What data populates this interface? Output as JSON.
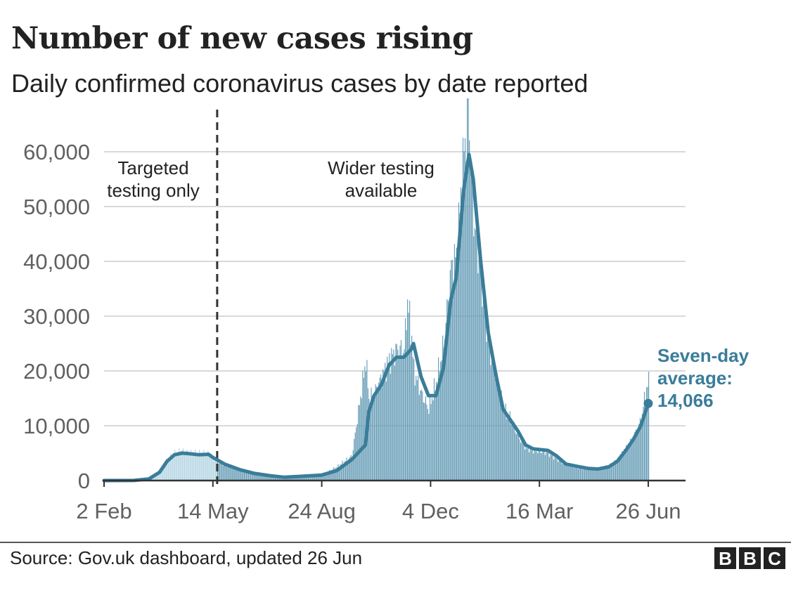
{
  "title": "Number of new cases rising",
  "subtitle": "Daily confirmed coronavirus cases by date reported",
  "source": "Source: Gov.uk dashboard, updated 26 Jun",
  "logo": [
    "B",
    "B",
    "C"
  ],
  "chart_data": {
    "type": "area",
    "title": "Number of new cases rising",
    "subtitle": "Daily confirmed coronavirus cases by date reported",
    "xlabel": "",
    "ylabel": "",
    "x_range": [
      "2020-02-02",
      "2021-06-26"
    ],
    "ylim": [
      0,
      60000
    ],
    "y_ticks": [
      0,
      10000,
      20000,
      30000,
      40000,
      50000,
      60000
    ],
    "y_tick_labels": [
      "0",
      "10,000",
      "20,000",
      "30,000",
      "40,000",
      "50,000",
      "60,000"
    ],
    "x_ticks": [
      "2020-02-02",
      "2020-05-14",
      "2020-08-24",
      "2020-12-04",
      "2021-03-16",
      "2021-06-26"
    ],
    "x_tick_labels": [
      "2 Feb",
      "14 May",
      "24 Aug",
      "4 Dec",
      "16 Mar",
      "26 Jun"
    ],
    "grid": true,
    "colors": {
      "line": "#3a7d99",
      "bars_targeted": "#b5d6e3",
      "bars_wider": "#6a9fb8",
      "grid": "#d9d9d9",
      "divider": "#333333"
    },
    "divider_date": "2020-05-18",
    "annotations": [
      {
        "lines": [
          "Targeted",
          "testing only"
        ]
      },
      {
        "lines": [
          "Wider testing",
          "available"
        ]
      }
    ],
    "callout": {
      "lines": [
        "Seven-day",
        "average:",
        "14,066"
      ],
      "date": "2021-06-26",
      "value": 14066
    },
    "series": [
      {
        "type": "line",
        "points": [
          [
            "2020-02-02",
            0
          ],
          [
            "2020-03-01",
            10
          ],
          [
            "2020-03-15",
            300
          ],
          [
            "2020-03-25",
            1500
          ],
          [
            "2020-04-01",
            3500
          ],
          [
            "2020-04-08",
            4700
          ],
          [
            "2020-04-15",
            5000
          ],
          [
            "2020-04-22",
            4900
          ],
          [
            "2020-05-01",
            4700
          ],
          [
            "2020-05-10",
            4800
          ],
          [
            "2020-05-14",
            4200
          ],
          [
            "2020-05-25",
            3000
          ],
          [
            "2020-06-08",
            2000
          ],
          [
            "2020-06-22",
            1300
          ],
          [
            "2020-07-06",
            900
          ],
          [
            "2020-07-20",
            600
          ],
          [
            "2020-08-03",
            750
          ],
          [
            "2020-08-24",
            1000
          ],
          [
            "2020-09-07",
            1800
          ],
          [
            "2020-09-21",
            3800
          ],
          [
            "2020-10-04",
            6500
          ],
          [
            "2020-10-07",
            12500
          ],
          [
            "2020-10-12",
            15500
          ],
          [
            "2020-10-19",
            17500
          ],
          [
            "2020-10-26",
            21000
          ],
          [
            "2020-11-02",
            22500
          ],
          [
            "2020-11-09",
            22500
          ],
          [
            "2020-11-16",
            24000
          ],
          [
            "2020-11-18",
            25000
          ],
          [
            "2020-11-25",
            19000
          ],
          [
            "2020-12-02",
            15500
          ],
          [
            "2020-12-09",
            15500
          ],
          [
            "2020-12-16",
            20500
          ],
          [
            "2020-12-23",
            33000
          ],
          [
            "2020-12-28",
            37000
          ],
          [
            "2021-01-04",
            53000
          ],
          [
            "2021-01-09",
            59500
          ],
          [
            "2021-01-13",
            55000
          ],
          [
            "2021-01-20",
            40000
          ],
          [
            "2021-01-27",
            27000
          ],
          [
            "2021-02-03",
            19500
          ],
          [
            "2021-02-10",
            13000
          ],
          [
            "2021-02-17",
            11000
          ],
          [
            "2021-02-24",
            9000
          ],
          [
            "2021-03-03",
            6500
          ],
          [
            "2021-03-10",
            5800
          ],
          [
            "2021-03-24",
            5500
          ],
          [
            "2021-04-01",
            4500
          ],
          [
            "2021-04-10",
            3000
          ],
          [
            "2021-04-20",
            2600
          ],
          [
            "2021-05-01",
            2200
          ],
          [
            "2021-05-10",
            2100
          ],
          [
            "2021-05-20",
            2500
          ],
          [
            "2021-05-28",
            3500
          ],
          [
            "2021-06-05",
            5500
          ],
          [
            "2021-06-12",
            7500
          ],
          [
            "2021-06-19",
            10000
          ],
          [
            "2021-06-26",
            14066
          ]
        ]
      }
    ],
    "daily_bars_approx": [
      [
        "2020-02-02",
        0
      ],
      [
        "2020-03-01",
        20
      ],
      [
        "2020-03-15",
        400
      ],
      [
        "2020-03-25",
        1800
      ],
      [
        "2020-04-01",
        4000
      ],
      [
        "2020-04-08",
        5000
      ],
      [
        "2020-04-15",
        5500
      ],
      [
        "2020-04-22",
        5200
      ],
      [
        "2020-05-01",
        5000
      ],
      [
        "2020-05-10",
        5000
      ],
      [
        "2020-05-14",
        4000
      ],
      [
        "2020-05-25",
        2900
      ],
      [
        "2020-06-08",
        1800
      ],
      [
        "2020-06-22",
        1200
      ],
      [
        "2020-07-06",
        800
      ],
      [
        "2020-07-20",
        600
      ],
      [
        "2020-08-03",
        800
      ],
      [
        "2020-08-24",
        1100
      ],
      [
        "2020-09-07",
        2500
      ],
      [
        "2020-09-21",
        4500
      ],
      [
        "2020-10-04",
        22000
      ],
      [
        "2020-10-07",
        15000
      ],
      [
        "2020-10-12",
        16000
      ],
      [
        "2020-10-19",
        19000
      ],
      [
        "2020-10-26",
        22000
      ],
      [
        "2020-11-02",
        24000
      ],
      [
        "2020-11-09",
        24000
      ],
      [
        "2020-11-12",
        33000
      ],
      [
        "2020-11-16",
        26000
      ],
      [
        "2020-11-18",
        20000
      ],
      [
        "2020-11-25",
        16000
      ],
      [
        "2020-12-02",
        13000
      ],
      [
        "2020-12-09",
        18000
      ],
      [
        "2020-12-16",
        25000
      ],
      [
        "2020-12-23",
        39000
      ],
      [
        "2020-12-28",
        41000
      ],
      [
        "2021-01-04",
        60000
      ],
      [
        "2021-01-08",
        68000
      ],
      [
        "2021-01-13",
        48000
      ],
      [
        "2021-01-20",
        38000
      ],
      [
        "2021-01-27",
        25000
      ],
      [
        "2021-02-03",
        19000
      ],
      [
        "2021-02-10",
        13000
      ],
      [
        "2021-02-17",
        11000
      ],
      [
        "2021-02-24",
        8000
      ],
      [
        "2021-03-03",
        6000
      ],
      [
        "2021-03-10",
        5500
      ],
      [
        "2021-03-24",
        5000
      ],
      [
        "2021-04-01",
        4000
      ],
      [
        "2021-04-10",
        2800
      ],
      [
        "2021-04-20",
        2400
      ],
      [
        "2021-05-01",
        2000
      ],
      [
        "2021-05-10",
        2000
      ],
      [
        "2021-05-20",
        2700
      ],
      [
        "2021-05-28",
        4000
      ],
      [
        "2021-06-05",
        6000
      ],
      [
        "2021-06-12",
        8000
      ],
      [
        "2021-06-19",
        11000
      ],
      [
        "2021-06-23",
        16000
      ],
      [
        "2021-06-26",
        18000
      ]
    ]
  }
}
